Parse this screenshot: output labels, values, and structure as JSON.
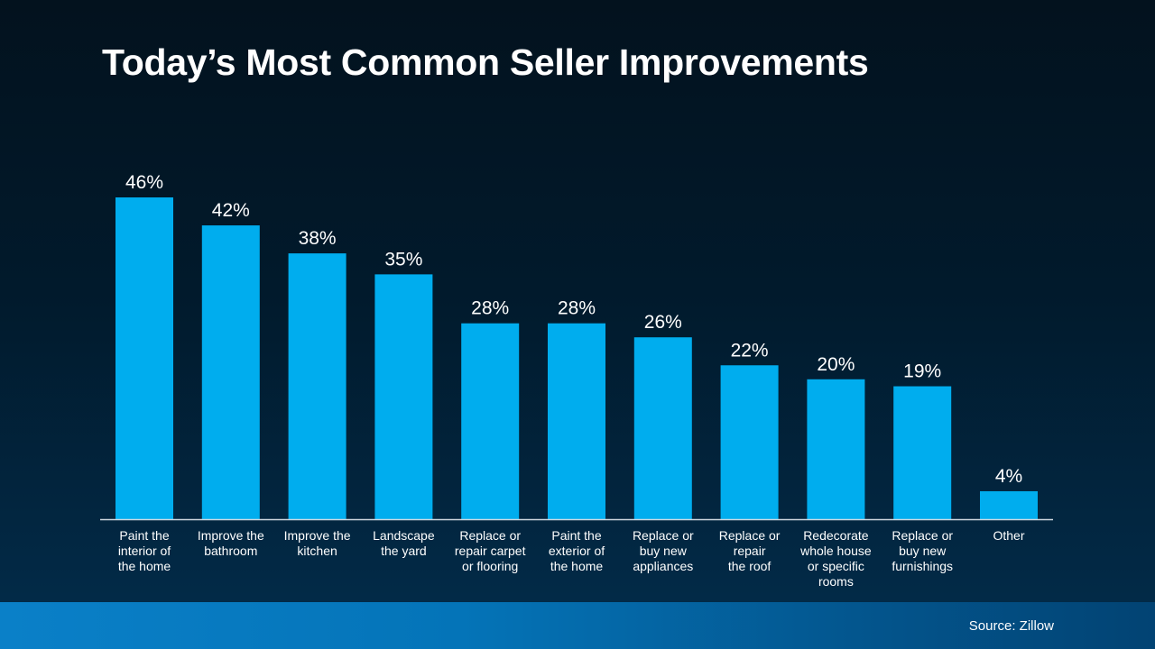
{
  "title": "Today’s Most Common Seller Improvements",
  "source": "Source: Zillow",
  "colors": {
    "bar": "#00adee",
    "axis": "#d0d8e0"
  },
  "chart_data": {
    "type": "bar",
    "title": "Today’s Most Common Seller Improvements",
    "xlabel": "",
    "ylabel": "",
    "ylim": [
      0,
      46
    ],
    "grid": false,
    "categories": [
      "Paint the\ninterior of\nthe home",
      "Improve the\nbathroom",
      "Improve the\nkitchen",
      "Landscape\nthe yard",
      "Replace or\nrepair carpet\nor flooring",
      "Paint the\nexterior of\nthe home",
      "Replace or\nbuy new\nappliances",
      "Replace or\nrepair\nthe roof",
      "Redecorate\nwhole house\nor specific\nrooms",
      "Replace or\nbuy new\nfurnishings",
      "Other"
    ],
    "values": [
      46,
      42,
      38,
      35,
      28,
      28,
      26,
      22,
      20,
      19,
      4
    ],
    "data_labels": [
      "46%",
      "42%",
      "38%",
      "35%",
      "28%",
      "28%",
      "26%",
      "22%",
      "20%",
      "19%",
      "4%"
    ]
  }
}
